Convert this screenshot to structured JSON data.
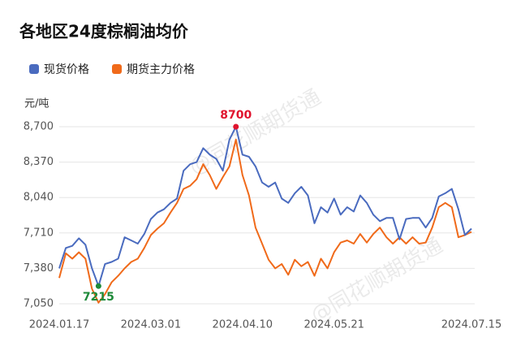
{
  "chart_data": {
    "type": "line",
    "title": "各地区24度棕榈油均价",
    "y_label": "元/吨",
    "watermark": "@同花顺期货通",
    "categories": [
      "2024.01.17",
      null,
      null,
      null,
      null,
      null,
      null,
      null,
      null,
      null,
      null,
      null,
      null,
      null,
      "2024.03.01",
      null,
      null,
      null,
      null,
      null,
      null,
      null,
      null,
      null,
      null,
      null,
      null,
      null,
      "2024.04.10",
      null,
      null,
      null,
      null,
      null,
      null,
      null,
      null,
      null,
      null,
      null,
      null,
      null,
      "2024.05.21",
      null,
      null,
      null,
      null,
      null,
      null,
      null,
      null,
      null,
      null,
      null,
      null,
      null,
      null,
      null,
      null,
      null,
      null,
      null,
      null,
      "2024.07.15"
    ],
    "series": [
      {
        "name": "现货价格",
        "color": "#4a6bbf",
        "values": [
          7380,
          7570,
          7590,
          7660,
          7600,
          7380,
          7215,
          7420,
          7440,
          7470,
          7670,
          7640,
          7610,
          7700,
          7840,
          7900,
          7930,
          7990,
          8030,
          8290,
          8350,
          8370,
          8500,
          8440,
          8400,
          8290,
          8580,
          8700,
          8440,
          8420,
          8330,
          8180,
          8140,
          8180,
          8030,
          7990,
          8080,
          8140,
          8060,
          7800,
          7950,
          7900,
          8030,
          7880,
          7950,
          7910,
          8060,
          7990,
          7880,
          7820,
          7850,
          7850,
          7650,
          7840,
          7850,
          7850,
          7760,
          7850,
          8050,
          8080,
          8120,
          7930,
          7690,
          7750
        ]
      },
      {
        "name": "期货主力价格",
        "color": "#f06a1a",
        "values": [
          7290,
          7520,
          7470,
          7530,
          7470,
          7190,
          7060,
          7140,
          7250,
          7310,
          7380,
          7440,
          7470,
          7570,
          7690,
          7750,
          7800,
          7900,
          7990,
          8120,
          8150,
          8210,
          8350,
          8250,
          8120,
          8230,
          8330,
          8580,
          8250,
          8060,
          7760,
          7610,
          7460,
          7380,
          7420,
          7320,
          7460,
          7400,
          7440,
          7310,
          7470,
          7380,
          7530,
          7620,
          7640,
          7610,
          7700,
          7620,
          7700,
          7760,
          7670,
          7610,
          7670,
          7610,
          7670,
          7610,
          7620,
          7760,
          7950,
          7990,
          7950,
          7670,
          7690,
          7720
        ]
      }
    ],
    "ylim": [
      7050,
      8700
    ],
    "yticks": [
      {
        "value": 7050,
        "label": "7,050"
      },
      {
        "value": 7380,
        "label": "7,380"
      },
      {
        "value": 7710,
        "label": "7,710"
      },
      {
        "value": 8040,
        "label": "8,040"
      },
      {
        "value": 8370,
        "label": "8,370"
      },
      {
        "value": 8700,
        "label": "8,700"
      }
    ],
    "grid": true,
    "max_color": "#e0142e",
    "min_color": "#1f8a3a"
  }
}
